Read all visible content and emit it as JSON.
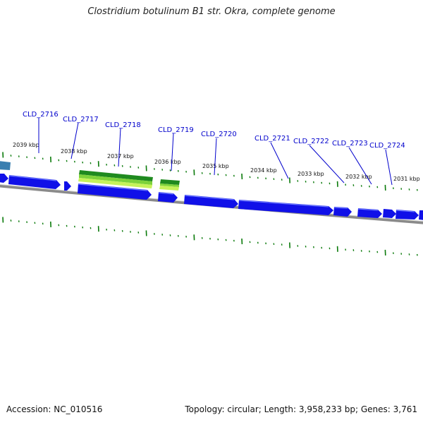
{
  "title": "Clostridium botulinum B1 str. Okra, complete genome",
  "footer": {
    "accession": "Accession: NC_010516",
    "topology": "Topology: circular; Length: 3,958,233 bp; Genes: 3,761"
  },
  "colors": {
    "gene_blue": "#1010e8",
    "gene_blue_light": "#5a6cff",
    "rna_green_dark": "#1f8a1f",
    "rna_green_light": "#b8f04a",
    "teal_feature": "#3a7fb0",
    "label_blue": "#0000cc",
    "tick_green": "#0a7a0a",
    "backbone": "#808080"
  },
  "gene_labels": [
    "CLD_2716",
    "CLD_2717",
    "CLD_2718",
    "CLD_2719",
    "CLD_2720",
    "CLD_2721",
    "CLD_2722",
    "CLD_2723",
    "CLD_2724"
  ],
  "kbp_labels": [
    "2039 kbp",
    "2038 kbp",
    "2037 kbp",
    "2036 kbp",
    "2035 kbp",
    "2034 kbp",
    "2033 kbp",
    "2032 kbp",
    "2031 kbp"
  ]
}
